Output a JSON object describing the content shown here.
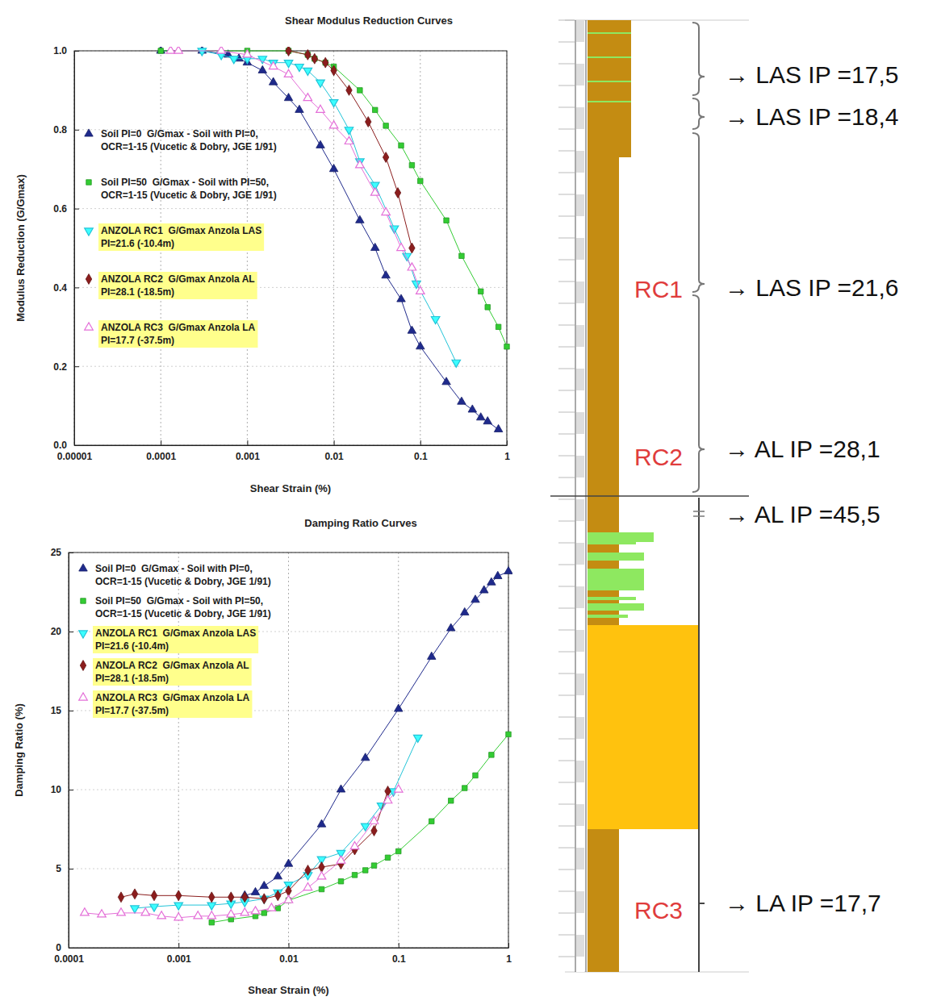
{
  "chart_data": [
    {
      "type": "scatter",
      "title": "Shear Modulus Reduction Curves",
      "x_label": "Shear Strain (%)",
      "y_label": "Modulus Reduction (G/Gmax)",
      "log": "x",
      "grid": true,
      "legend": "upper left",
      "xlim": [
        1e-05,
        1
      ],
      "xticks": [
        1e-05,
        0.0001,
        0.001,
        0.01,
        0.1,
        1
      ],
      "ylim": [
        0,
        1
      ],
      "yticks": [
        {
          "value": 0,
          "label": "0.0"
        },
        0.2,
        0.4,
        0.6,
        0.8,
        {
          "value": 1,
          "label": "1.0"
        }
      ],
      "series": [
        {
          "name": "Soil PI=0  G/Gmax - Soil with PI=0, OCR=1-15 (Vucetic & Dobry, JGE 1/91)",
          "color": "#1f2a8c",
          "marker": "triangle",
          "x": [
            0.0001,
            0.0003,
            0.0006,
            0.0008,
            0.001,
            0.0015,
            0.002,
            0.003,
            0.004,
            0.007,
            0.01,
            0.02,
            0.03,
            0.04,
            0.06,
            0.08,
            0.1,
            0.2,
            0.3,
            0.4,
            0.5,
            0.6,
            0.8
          ],
          "values": [
            1,
            1,
            0.99,
            0.98,
            0.97,
            0.95,
            0.92,
            0.88,
            0.85,
            0.76,
            0.7,
            0.57,
            0.5,
            0.43,
            0.37,
            0.29,
            0.25,
            0.16,
            0.11,
            0.09,
            0.07,
            0.06,
            0.04
          ]
        },
        {
          "name": "Soil PI=50  G/Gmax - Soil with PI=50, OCR=1-15 (Vucetic & Dobry, JGE 1/91)",
          "color": "#33cc33",
          "marker": "square",
          "x": [
            0.0001,
            0.001,
            0.003,
            0.005,
            0.006,
            0.008,
            0.01,
            0.02,
            0.03,
            0.04,
            0.06,
            0.08,
            0.1,
            0.2,
            0.3,
            0.5,
            0.6,
            0.8,
            1
          ],
          "values": [
            1,
            1,
            1,
            0.99,
            0.98,
            0.97,
            0.96,
            0.9,
            0.85,
            0.81,
            0.76,
            0.71,
            0.67,
            0.57,
            0.48,
            0.39,
            0.35,
            0.3,
            0.25
          ]
        },
        {
          "name": "ANZOLA RC1  G/Gmax Anzola LAS PI=21.6 (-10.4m)",
          "color": "#22c4d8",
          "marker": "triangle-down",
          "x": [
            0.0003,
            0.0005,
            0.0007,
            0.001,
            0.0015,
            0.002,
            0.003,
            0.004,
            0.005,
            0.007,
            0.01,
            0.015,
            0.02,
            0.03,
            0.05,
            0.07,
            0.09,
            0.15,
            0.26
          ],
          "values": [
            1,
            0.99,
            0.98,
            0.98,
            0.98,
            0.97,
            0.97,
            0.96,
            0.95,
            0.92,
            0.87,
            0.8,
            0.72,
            0.66,
            0.55,
            0.48,
            0.41,
            0.32,
            0.21
          ]
        },
        {
          "name": "ANZOLA RC2  G/Gmax Anzola AL PI=28.1 (-18.5m)",
          "color": "#8b1d1d",
          "marker": "diamond",
          "x": [
            0.003,
            0.005,
            0.006,
            0.008,
            0.01,
            0.015,
            0.025,
            0.04,
            0.055,
            0.08
          ],
          "values": [
            1,
            0.99,
            0.98,
            0.97,
            0.95,
            0.9,
            0.82,
            0.73,
            0.64,
            0.5
          ]
        },
        {
          "name": "ANZOLA RC3  G/Gmax Anzola LA PI=17.7 (-37.5m)",
          "color": "#e46fd8",
          "marker": "triangle-open",
          "x": [
            0.00013,
            0.00016,
            0.0005,
            0.001,
            0.002,
            0.003,
            0.005,
            0.007,
            0.01,
            0.015,
            0.02,
            0.03,
            0.04,
            0.06,
            0.08,
            0.1
          ],
          "values": [
            1,
            1,
            1,
            0.99,
            0.96,
            0.94,
            0.88,
            0.85,
            0.81,
            0.77,
            0.71,
            0.64,
            0.59,
            0.5,
            0.45,
            0.39
          ]
        }
      ]
    },
    {
      "type": "scatter",
      "title": "Damping Ratio Curves",
      "x_label": "Shear Strain (%)",
      "y_label": "Damping Ratio (%)",
      "log": "x",
      "grid": true,
      "legend": "upper left",
      "xlim": [
        0.0001,
        1
      ],
      "xticks": [
        0.0001,
        0.001,
        0.01,
        0.1,
        1
      ],
      "ylim": [
        0,
        25
      ],
      "yticks": [
        0,
        5,
        10,
        15,
        20,
        25
      ],
      "series": [
        {
          "name": "Soil PI=0  G/Gmax - Soil with PI=0, OCR=1-15 (Vucetic & Dobry, JGE 1/91)",
          "color": "#1f2a8c",
          "marker": "triangle",
          "x": [
            0.004,
            0.005,
            0.006,
            0.008,
            0.01,
            0.02,
            0.03,
            0.05,
            0.1,
            0.2,
            0.3,
            0.4,
            0.5,
            0.6,
            0.7,
            0.8,
            1
          ],
          "values": [
            3.3,
            3.5,
            3.9,
            4.5,
            5.3,
            7.8,
            10,
            12,
            15.1,
            18.4,
            20.2,
            21.2,
            22,
            22.6,
            23.1,
            23.5,
            23.8
          ]
        },
        {
          "name": "Soil PI=50  G/Gmax - Soil with PI=50, OCR=1-15 (Vucetic & Dobry, JGE 1/91)",
          "color": "#33cc33",
          "marker": "square",
          "x": [
            0.002,
            0.003,
            0.005,
            0.006,
            0.008,
            0.01,
            0.02,
            0.03,
            0.04,
            0.05,
            0.06,
            0.08,
            0.1,
            0.2,
            0.3,
            0.4,
            0.5,
            0.7,
            1
          ],
          "values": [
            1.6,
            1.8,
            2,
            2.2,
            2.5,
            3,
            3.7,
            4.2,
            4.6,
            4.9,
            5.2,
            5.7,
            6.1,
            8,
            9.3,
            10.1,
            10.9,
            12.2,
            13.5
          ]
        },
        {
          "name": "ANZOLA RC1  G/Gmax Anzola LAS PI=21.6 (-10.4m)",
          "color": "#22c4d8",
          "marker": "triangle-down",
          "x": [
            0.0004,
            0.0006,
            0.001,
            0.002,
            0.003,
            0.004,
            0.006,
            0.008,
            0.01,
            0.015,
            0.02,
            0.03,
            0.05,
            0.07,
            0.09,
            0.15
          ],
          "values": [
            2.5,
            2.6,
            2.7,
            2.7,
            2.8,
            2.9,
            3.1,
            3.5,
            4,
            4.6,
            5.6,
            6,
            7.7,
            9,
            9.9,
            13.3
          ]
        },
        {
          "name": "ANZOLA RC2  G/Gmax Anzola AL PI=28.1 (-18.5m)",
          "color": "#8b1d1d",
          "marker": "diamond",
          "x": [
            0.0003,
            0.0004,
            0.0006,
            0.001,
            0.002,
            0.003,
            0.004,
            0.006,
            0.008,
            0.01,
            0.015,
            0.02,
            0.03,
            0.04,
            0.06,
            0.08
          ],
          "values": [
            3.2,
            3.4,
            3.3,
            3.3,
            3.2,
            3.2,
            3.2,
            3.1,
            3.3,
            3.6,
            4.9,
            5.1,
            5.3,
            6.2,
            7.4,
            9.9
          ]
        },
        {
          "name": "ANZOLA RC3  G/Gmax Anzola LA PI=17.7 (-37.5m)",
          "color": "#e46fd8",
          "marker": "triangle-open",
          "x": [
            0.00014,
            0.0002,
            0.0003,
            0.0005,
            0.0007,
            0.001,
            0.0015,
            0.002,
            0.003,
            0.004,
            0.005,
            0.007,
            0.01,
            0.015,
            0.02,
            0.03,
            0.04,
            0.06,
            0.08,
            0.1
          ],
          "values": [
            2.2,
            2.1,
            2.2,
            2.2,
            2,
            1.9,
            2,
            2,
            2.1,
            2.2,
            2.3,
            2.5,
            3,
            3.8,
            4.5,
            5.5,
            6.4,
            8,
            9.3,
            10
          ]
        }
      ]
    }
  ],
  "soil_column": {
    "labels": [
      "→ LAS IP =17,5",
      "→ LAS IP =18,4",
      "→ LAS IP =21,6",
      "→ AL IP =28,1",
      "→ AL IP =45,5",
      "→ LA IP =17,7"
    ],
    "cores": [
      "RC1",
      "RC2",
      "RC3"
    ]
  }
}
